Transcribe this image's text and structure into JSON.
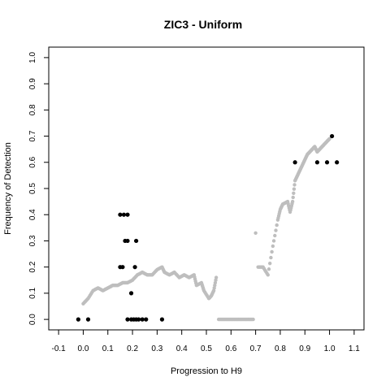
{
  "chart_data": {
    "type": "scatter",
    "title": "ZIC3 - Uniform",
    "xlabel": "Progression to H9",
    "ylabel": "Frequency of Detection",
    "xlim": [
      -0.14,
      1.14
    ],
    "ylim": [
      -0.04,
      1.04
    ],
    "xticks": [
      "-0.1",
      "0.0",
      "0.1",
      "0.2",
      "0.3",
      "0.4",
      "0.5",
      "0.6",
      "0.7",
      "0.8",
      "0.9",
      "1.0",
      "1.1"
    ],
    "yticks": [
      "0.0",
      "0.1",
      "0.2",
      "0.3",
      "0.4",
      "0.5",
      "0.6",
      "0.7",
      "0.8",
      "0.9",
      "1.0"
    ],
    "grid": false,
    "legend": "none",
    "series": [
      {
        "color": "#bebebe",
        "curve_points": [
          [
            0.0,
            0.06
          ],
          [
            0.02,
            0.08
          ],
          [
            0.04,
            0.11
          ],
          [
            0.06,
            0.12
          ],
          [
            0.08,
            0.11
          ],
          [
            0.1,
            0.12
          ],
          [
            0.12,
            0.13
          ],
          [
            0.14,
            0.13
          ],
          [
            0.16,
            0.14
          ],
          [
            0.18,
            0.14
          ],
          [
            0.2,
            0.15
          ],
          [
            0.22,
            0.17
          ],
          [
            0.24,
            0.18
          ],
          [
            0.26,
            0.17
          ],
          [
            0.28,
            0.17
          ],
          [
            0.3,
            0.19
          ],
          [
            0.32,
            0.2
          ],
          [
            0.33,
            0.18
          ],
          [
            0.35,
            0.17
          ],
          [
            0.37,
            0.18
          ],
          [
            0.39,
            0.16
          ],
          [
            0.41,
            0.17
          ],
          [
            0.43,
            0.16
          ],
          [
            0.45,
            0.17
          ],
          [
            0.46,
            0.13
          ],
          [
            0.48,
            0.14
          ],
          [
            0.49,
            0.11
          ],
          [
            0.51,
            0.08
          ],
          [
            0.52,
            0.09
          ],
          [
            0.53,
            0.11
          ],
          [
            0.54,
            0.16
          ],
          [
            0.55,
            0.0
          ],
          [
            0.57,
            0.0
          ],
          [
            0.59,
            0.0
          ],
          [
            0.61,
            0.0
          ],
          [
            0.63,
            0.0
          ],
          [
            0.65,
            0.0
          ],
          [
            0.67,
            0.0
          ],
          [
            0.69,
            0.0
          ],
          [
            0.7,
            0.33
          ],
          [
            0.71,
            0.2
          ],
          [
            0.73,
            0.2
          ],
          [
            0.75,
            0.17
          ],
          [
            0.77,
            0.28
          ],
          [
            0.79,
            0.38
          ],
          [
            0.8,
            0.42
          ],
          [
            0.81,
            0.44
          ],
          [
            0.83,
            0.45
          ],
          [
            0.84,
            0.41
          ],
          [
            0.85,
            0.45
          ],
          [
            0.86,
            0.53
          ],
          [
            0.87,
            0.55
          ],
          [
            0.88,
            0.57
          ],
          [
            0.89,
            0.59
          ],
          [
            0.9,
            0.61
          ],
          [
            0.91,
            0.63
          ],
          [
            0.92,
            0.64
          ],
          [
            0.93,
            0.65
          ],
          [
            0.94,
            0.66
          ],
          [
            0.95,
            0.64
          ],
          [
            0.96,
            0.65
          ],
          [
            0.97,
            0.66
          ],
          [
            0.98,
            0.67
          ],
          [
            0.99,
            0.68
          ],
          [
            1.0,
            0.69
          ]
        ]
      },
      {
        "color": "#000000",
        "points": [
          [
            -0.02,
            0.0
          ],
          [
            0.02,
            0.0
          ],
          [
            0.15,
            0.4
          ],
          [
            0.165,
            0.4
          ],
          [
            0.18,
            0.4
          ],
          [
            0.17,
            0.3
          ],
          [
            0.18,
            0.3
          ],
          [
            0.215,
            0.3
          ],
          [
            0.15,
            0.2
          ],
          [
            0.16,
            0.2
          ],
          [
            0.21,
            0.2
          ],
          [
            0.195,
            0.1
          ],
          [
            0.18,
            0.0
          ],
          [
            0.195,
            0.0
          ],
          [
            0.205,
            0.0
          ],
          [
            0.215,
            0.0
          ],
          [
            0.225,
            0.0
          ],
          [
            0.24,
            0.0
          ],
          [
            0.255,
            0.0
          ],
          [
            0.32,
            0.0
          ],
          [
            0.86,
            0.6
          ],
          [
            0.95,
            0.6
          ],
          [
            0.99,
            0.6
          ],
          [
            1.03,
            0.6
          ],
          [
            1.01,
            0.7
          ]
        ]
      }
    ]
  }
}
